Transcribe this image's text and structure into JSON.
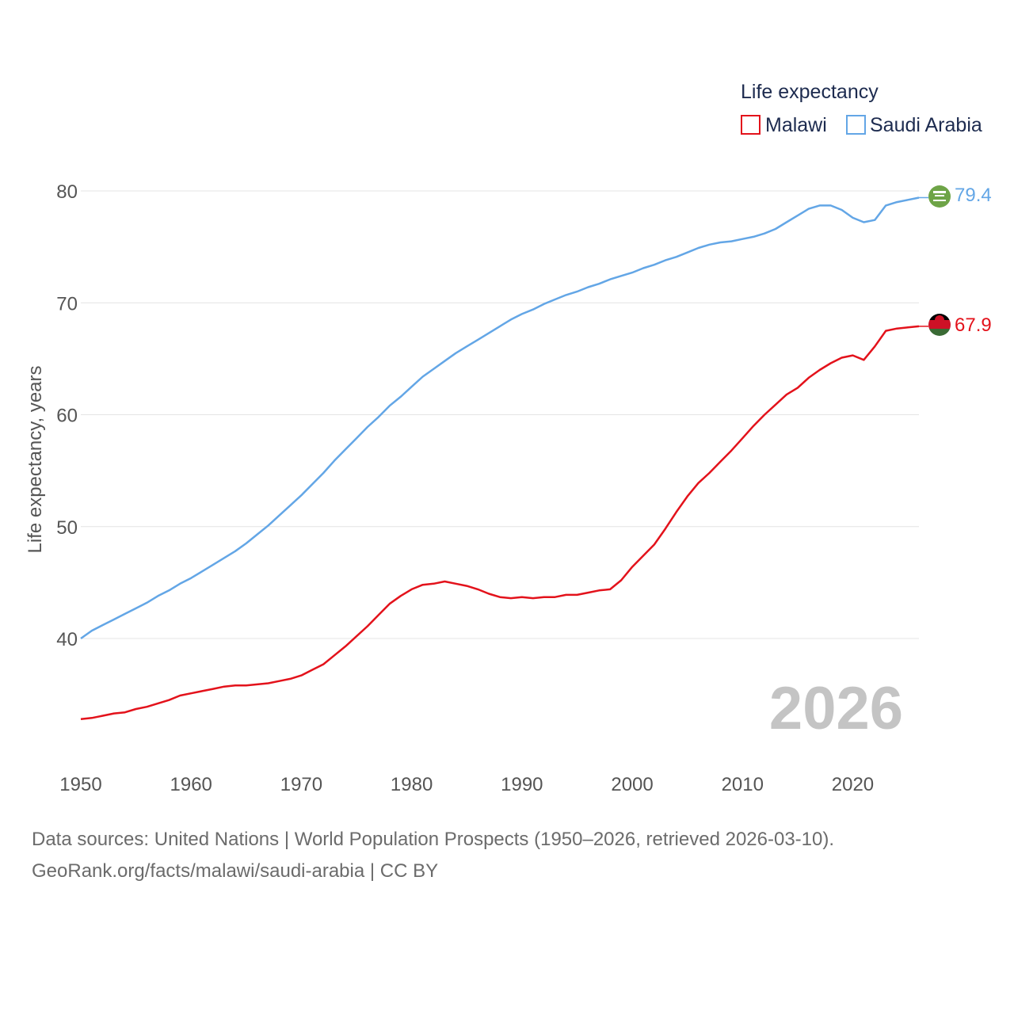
{
  "chart_data": {
    "type": "line",
    "legend": {
      "title": "Life expectancy",
      "placement": "top-right"
    },
    "ylabel": "Life expectancy, years",
    "xlabel": "",
    "xlim": [
      1950,
      2026
    ],
    "ylim": [
      30,
      82
    ],
    "x_ticks": [
      "1950",
      "1960",
      "1970",
      "1980",
      "1990",
      "2000",
      "2010",
      "2020"
    ],
    "y_ticks": [
      "40",
      "50",
      "60",
      "70",
      "80"
    ],
    "gridlines": true,
    "year_label": "2026",
    "x": [
      1950,
      1951,
      1952,
      1953,
      1954,
      1955,
      1956,
      1957,
      1958,
      1959,
      1960,
      1961,
      1962,
      1963,
      1964,
      1965,
      1966,
      1967,
      1968,
      1969,
      1970,
      1971,
      1972,
      1973,
      1974,
      1975,
      1976,
      1977,
      1978,
      1979,
      1980,
      1981,
      1982,
      1983,
      1984,
      1985,
      1986,
      1987,
      1988,
      1989,
      1990,
      1991,
      1992,
      1993,
      1994,
      1995,
      1996,
      1997,
      1998,
      1999,
      2000,
      2001,
      2002,
      2003,
      2004,
      2005,
      2006,
      2007,
      2008,
      2009,
      2010,
      2011,
      2012,
      2013,
      2014,
      2015,
      2016,
      2017,
      2018,
      2019,
      2020,
      2021,
      2022,
      2023,
      2024,
      2025,
      2026
    ],
    "series": [
      {
        "name": "Malawi",
        "color": "#e3121b",
        "end_label": "67.9",
        "values": [
          32.8,
          32.9,
          33.1,
          33.3,
          33.4,
          33.7,
          33.9,
          34.2,
          34.5,
          34.9,
          35.1,
          35.3,
          35.5,
          35.7,
          35.8,
          35.8,
          35.9,
          36.0,
          36.2,
          36.4,
          36.7,
          37.2,
          37.7,
          38.5,
          39.3,
          40.2,
          41.1,
          42.1,
          43.1,
          43.8,
          44.4,
          44.8,
          44.9,
          45.1,
          44.9,
          44.7,
          44.4,
          44.0,
          43.7,
          43.6,
          43.7,
          43.6,
          43.7,
          43.7,
          43.9,
          43.9,
          44.1,
          44.3,
          44.4,
          45.2,
          46.4,
          47.4,
          48.4,
          49.8,
          51.3,
          52.7,
          53.9,
          54.8,
          55.8,
          56.8,
          57.9,
          59.0,
          60.0,
          60.9,
          61.8,
          62.4,
          63.3,
          64.0,
          64.6,
          65.1,
          65.3,
          64.9,
          66.1,
          67.5,
          67.7,
          67.8,
          67.9
        ]
      },
      {
        "name": "Saudi Arabia",
        "color": "#63a6e6",
        "end_label": "79.4",
        "values": [
          40.0,
          40.7,
          41.2,
          41.7,
          42.2,
          42.7,
          43.2,
          43.8,
          44.3,
          44.9,
          45.4,
          46.0,
          46.6,
          47.2,
          47.8,
          48.5,
          49.3,
          50.1,
          51.0,
          51.9,
          52.8,
          53.8,
          54.8,
          55.9,
          56.9,
          57.9,
          58.9,
          59.8,
          60.8,
          61.6,
          62.5,
          63.4,
          64.1,
          64.8,
          65.5,
          66.1,
          66.7,
          67.3,
          67.9,
          68.5,
          69.0,
          69.4,
          69.9,
          70.3,
          70.7,
          71.0,
          71.4,
          71.7,
          72.1,
          72.4,
          72.7,
          73.1,
          73.4,
          73.8,
          74.1,
          74.5,
          74.9,
          75.2,
          75.4,
          75.5,
          75.7,
          75.9,
          76.2,
          76.6,
          77.2,
          77.8,
          78.4,
          78.7,
          78.7,
          78.3,
          77.6,
          77.2,
          77.4,
          78.7,
          79.0,
          79.2,
          79.4
        ]
      }
    ],
    "source_note": "Data sources: United Nations | World Population Prospects (1950–2026, retrieved 2026-03-10).",
    "attribution": "GeoRank.org/facts/malawi/saudi-arabia | CC BY"
  }
}
